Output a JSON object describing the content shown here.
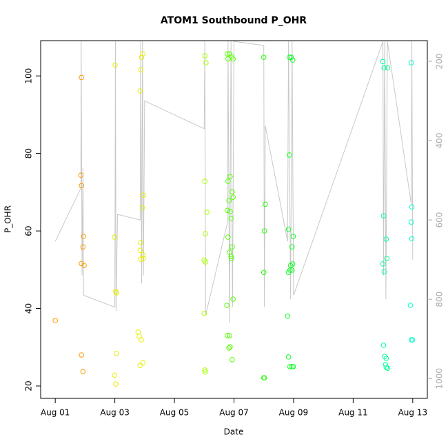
{
  "chart_data": {
    "type": "scatter",
    "title": "ATOM1 Southbound P_OHR",
    "xlabel": "Date",
    "ylabel": "P_OHR",
    "xlim": [
      0.51,
      13.49
    ],
    "ylim": [
      16.8,
      109.1
    ],
    "y2lim": [
      1050,
      148
    ],
    "xticks": [
      {
        "value": 1,
        "label": "Aug 01"
      },
      {
        "value": 3,
        "label": "Aug 03"
      },
      {
        "value": 5,
        "label": "Aug 05"
      },
      {
        "value": 7,
        "label": "Aug 07"
      },
      {
        "value": 9,
        "label": "Aug 09"
      },
      {
        "value": 11,
        "label": "Aug 11"
      },
      {
        "value": 13,
        "label": "Aug 13"
      }
    ],
    "yticks": [
      20,
      40,
      60,
      80,
      100
    ],
    "y2ticks": [
      200,
      400,
      600,
      800,
      1000
    ],
    "series": [
      {
        "mode": "line",
        "axis": "y2",
        "color": "#c8c8c8",
        "x": [
          1.0,
          1.86,
          1.87,
          1.9,
          1.93,
          1.95,
          3.0,
          3.02,
          3.04,
          3.09,
          3.85,
          3.87,
          3.9,
          3.93,
          3.96,
          4.0,
          6.0,
          6.02,
          6.05,
          6.78,
          6.8,
          6.85,
          6.9,
          6.95,
          7.0,
          8.0,
          8.02,
          8.05,
          8.8,
          8.83,
          8.9,
          8.95,
          9.0,
          12.0,
          12.02,
          12.06,
          12.1,
          12.15,
          12.95,
          12.97,
          13.0
        ],
        "values": [
          654,
          520,
          150,
          740,
          470,
          790,
          820,
          150,
          830,
          586,
          600,
          150,
          760,
          150,
          740,
          300,
          370,
          150,
          840,
          607,
          150,
          860,
          150,
          820,
          150,
          160,
          820,
          362,
          654,
          150,
          800,
          150,
          790,
          150,
          740,
          150,
          800,
          150,
          560,
          150,
          700
        ]
      },
      {
        "mode": "points",
        "color": "#ff9900",
        "x": [
          1.0,
          1.88,
          1.86,
          1.88,
          1.95,
          1.93,
          1.88,
          1.97,
          1.88,
          1.93
        ],
        "values": [
          36.9,
          99.6,
          74.4,
          71.7,
          58.6,
          55.9,
          51.6,
          51.1,
          28.0,
          23.7
        ]
      },
      {
        "mode": "points",
        "color": "#e6ee00",
        "x": [
          3.01,
          2.99,
          3.03,
          3.05,
          3.05,
          2.99,
          3.03,
          3.94,
          3.9,
          3.87,
          3.85,
          3.96,
          3.92,
          3.87,
          3.85,
          3.94,
          3.87,
          3.96,
          3.78,
          3.82,
          3.89,
          3.94,
          3.85
        ],
        "values": [
          102.8,
          58.4,
          44.4,
          44.0,
          28.4,
          22.8,
          20.5,
          105.7,
          104.8,
          101.6,
          96.1,
          69.2,
          66.0,
          57.0,
          55.0,
          53.8,
          52.7,
          52.9,
          33.9,
          32.8,
          31.9,
          26.0,
          25.3
        ]
      },
      {
        "mode": "points",
        "color": "#aaff00",
        "x": [
          6.02,
          6.06,
          6.02,
          6.09,
          6.04,
          6.0,
          6.04,
          6.0,
          6.02,
          6.04
        ],
        "values": [
          105.2,
          103.4,
          72.8,
          64.8,
          59.3,
          52.5,
          52.0,
          38.7,
          24.1,
          23.6
        ]
      },
      {
        "mode": "points",
        "color": "#55ff00",
        "x": [
          6.78,
          6.85,
          6.92,
          6.97,
          6.8,
          6.87,
          6.8,
          6.94,
          6.97,
          6.83,
          6.78,
          6.87,
          6.9,
          6.8,
          6.94,
          6.85,
          6.9,
          6.92,
          6.76,
          6.97,
          6.78,
          6.85,
          6.87,
          6.83,
          6.94
        ],
        "values": [
          105.7,
          105.7,
          104.9,
          104.4,
          104.4,
          74.0,
          72.8,
          70.1,
          68.7,
          67.8,
          65.3,
          65.0,
          63.2,
          58.4,
          55.9,
          54.5,
          53.4,
          52.9,
          40.8,
          42.4,
          33.0,
          33.0,
          30.1,
          29.8,
          26.8
        ]
      },
      {
        "mode": "points",
        "color": "#22ff00",
        "x": [
          8.0,
          8.05,
          8.02,
          8.0,
          8.0,
          8.02
        ],
        "values": [
          104.8,
          66.9,
          60.0,
          49.3,
          22.1,
          22.1
        ]
      },
      {
        "mode": "points",
        "color": "#11ff22",
        "x": [
          8.86,
          8.92,
          8.97,
          8.86,
          8.83,
          8.99,
          8.95,
          8.97,
          8.9,
          8.88,
          8.95,
          8.83,
          8.8,
          8.83,
          8.88,
          8.95,
          8.99
        ],
        "values": [
          104.8,
          104.8,
          104.1,
          79.6,
          60.4,
          58.6,
          55.9,
          51.5,
          51.1,
          49.9,
          49.9,
          49.3,
          38.0,
          27.5,
          25.0,
          25.0,
          25.0
        ]
      },
      {
        "mode": "points",
        "color": "#00ff99",
        "x": [
          12.0,
          12.04,
          12.16,
          12.02,
          12.11,
          12.13,
          12.0,
          12.04,
          12.02,
          12.06,
          12.11,
          12.09,
          12.11,
          12.16
        ],
        "values": [
          103.7,
          102.1,
          102.1,
          63.9,
          57.9,
          52.9,
          51.5,
          49.5,
          30.5,
          27.6,
          27.1,
          25.5,
          24.8,
          24.6
        ]
      },
      {
        "mode": "points",
        "color": "#00ffcc",
        "x": [
          12.95,
          12.97,
          12.95,
          12.97,
          12.92,
          12.95,
          12.99
        ],
        "values": [
          103.4,
          66.2,
          62.3,
          58.0,
          40.8,
          31.9,
          31.9
        ]
      }
    ]
  }
}
